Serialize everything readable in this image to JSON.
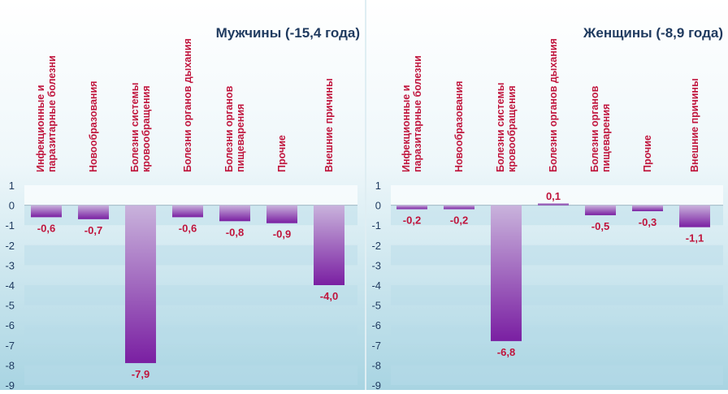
{
  "colors": {
    "bar_top": "#c9b3dc",
    "bar_bottom": "#7a1fa2",
    "category_text": "#c0143c",
    "value_text": "#c0143c",
    "title_text": "#1f3a5f",
    "axis_text": "#1f3a5f",
    "background_top": "#ffffff",
    "background_bottom": "#a8d4e2",
    "band": "#b9dce8"
  },
  "chart_data": [
    {
      "type": "bar",
      "title": "Мужчины (-15,4 года)",
      "categories": [
        "Инфекционные и паразитарные болезни",
        "Новообразования",
        "Болезни системы кровообращения",
        "Болезни органов дыхания",
        "Болезни органов пищеварения",
        "Прочие",
        "Внешние причины"
      ],
      "category_lines": [
        [
          "Инфекционные и",
          "паразитарные болезни"
        ],
        [
          "Новообразования"
        ],
        [
          "Болезни системы",
          "кровообращения"
        ],
        [
          "Болезни органов дыхания"
        ],
        [
          "Болезни органов",
          "пищеварения"
        ],
        [
          "Прочие"
        ],
        [
          "Внешние причины"
        ]
      ],
      "values": [
        -0.6,
        -0.7,
        -7.9,
        -0.6,
        -0.8,
        -0.9,
        -4.0
      ],
      "value_labels": [
        "-0,6",
        "-0,7",
        "-7,9",
        "-0,6",
        "-0,8",
        "-0,9",
        "-4,0"
      ],
      "ylim": [
        -9,
        1
      ],
      "yticks": [
        1,
        0,
        -1,
        -2,
        -3,
        -4,
        -5,
        -6,
        -7,
        -8,
        -9
      ],
      "ytick_labels": [
        "1",
        "0",
        "-1",
        "-2",
        "-3",
        "-4",
        "-5",
        "-6",
        "-7",
        "-8",
        "-9"
      ],
      "legend": "none",
      "grid": false
    },
    {
      "type": "bar",
      "title": "Женщины (-8,9 года)",
      "categories": [
        "Инфекционные и паразитарные болезни",
        "Новообразования",
        "Болезни системы кровообращения",
        "Болезни органов дыхания",
        "Болезни органов пищеварения",
        "Прочие",
        "Внешние причины"
      ],
      "category_lines": [
        [
          "Инфекционные и",
          "паразитарные болезни"
        ],
        [
          "Новообразования"
        ],
        [
          "Болезни системы",
          "кровообращения"
        ],
        [
          "Болезни органов дыхания"
        ],
        [
          "Болезни органов",
          "пищеварения"
        ],
        [
          "Прочие"
        ],
        [
          "Внешние причины"
        ]
      ],
      "values": [
        -0.2,
        -0.2,
        -6.8,
        0.1,
        -0.5,
        -0.3,
        -1.1
      ],
      "value_labels": [
        "-0,2",
        "-0,2",
        "-6,8",
        "0,1",
        "-0,5",
        "-0,3",
        "-1,1"
      ],
      "ylim": [
        -9,
        1
      ],
      "yticks": [
        1,
        0,
        -1,
        -2,
        -3,
        -4,
        -5,
        -6,
        -7,
        -8,
        -9
      ],
      "ytick_labels": [
        "1",
        "0",
        "-1",
        "-2",
        "-3",
        "-4",
        "-5",
        "-6",
        "-7",
        "-8",
        "-9"
      ],
      "legend": "none",
      "grid": false
    }
  ]
}
